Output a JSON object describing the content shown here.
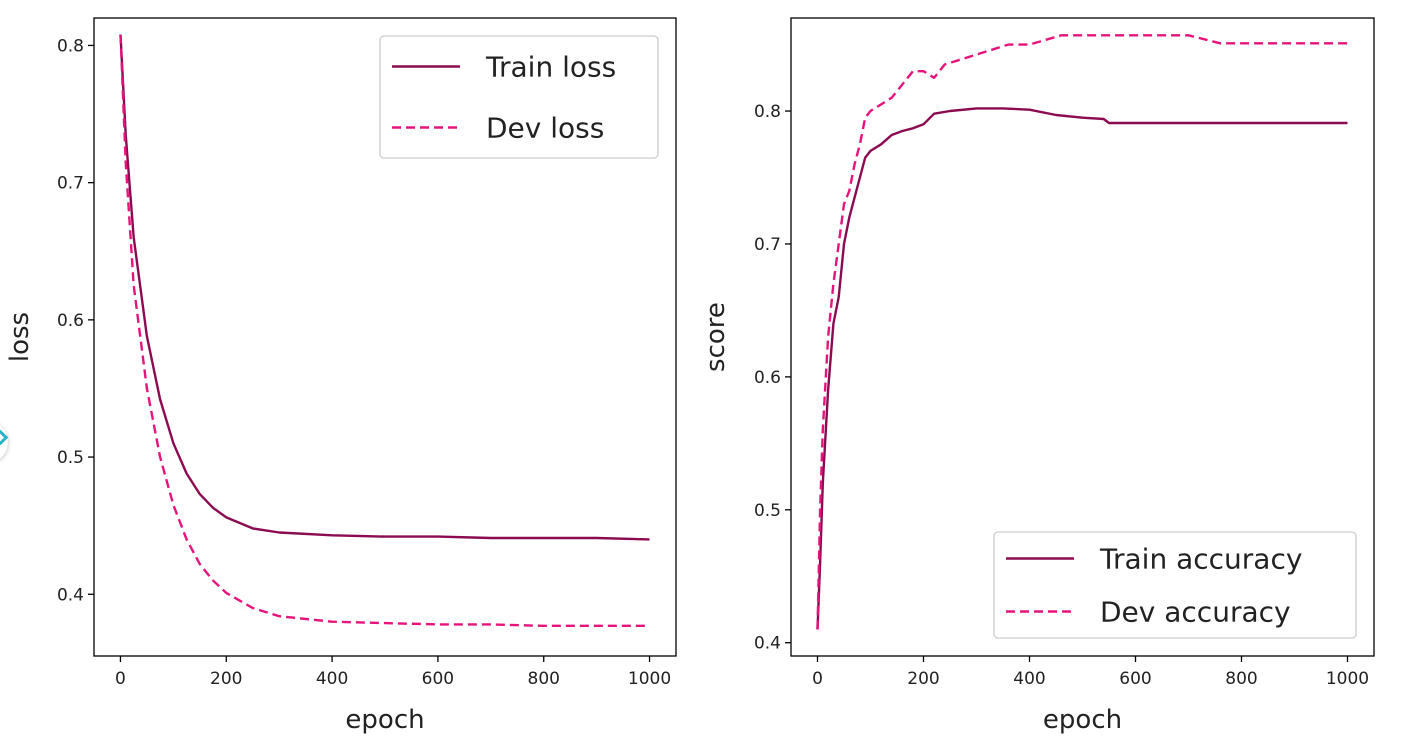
{
  "colors": {
    "train": "#8b0a50",
    "dev": "#e6147a"
  },
  "chart_data": [
    {
      "type": "line",
      "title": "",
      "xlabel": "epoch",
      "ylabel": "loss",
      "xlim": [
        -50,
        1050
      ],
      "ylim": [
        0.355,
        0.82
      ],
      "xticks": [
        0,
        200,
        400,
        600,
        800,
        1000
      ],
      "xtick_labels": [
        "0",
        "200",
        "400",
        "600",
        "800",
        "1000"
      ],
      "yticks": [
        0.4,
        0.5,
        0.6,
        0.7,
        0.8
      ],
      "ytick_labels": [
        "0.4",
        "0.5",
        "0.6",
        "0.7",
        "0.8"
      ],
      "legend_position": "top-right",
      "series": [
        {
          "name": "Train loss",
          "style": "solid",
          "color": "#8b0a50",
          "x": [
            0,
            10,
            25,
            50,
            75,
            100,
            125,
            150,
            175,
            200,
            250,
            300,
            400,
            500,
            600,
            700,
            800,
            900,
            1000
          ],
          "y": [
            0.808,
            0.735,
            0.66,
            0.588,
            0.542,
            0.51,
            0.488,
            0.473,
            0.463,
            0.456,
            0.448,
            0.445,
            0.443,
            0.442,
            0.442,
            0.441,
            0.441,
            0.441,
            0.44
          ]
        },
        {
          "name": "Dev loss",
          "style": "dashed",
          "color": "#e6147a",
          "x": [
            0,
            10,
            25,
            50,
            75,
            100,
            125,
            150,
            175,
            200,
            250,
            300,
            400,
            500,
            600,
            700,
            800,
            900,
            1000
          ],
          "y": [
            0.808,
            0.715,
            0.625,
            0.55,
            0.5,
            0.465,
            0.44,
            0.422,
            0.41,
            0.401,
            0.39,
            0.384,
            0.38,
            0.379,
            0.378,
            0.378,
            0.377,
            0.377,
            0.377
          ]
        }
      ]
    },
    {
      "type": "line",
      "title": "",
      "xlabel": "epoch",
      "ylabel": "score",
      "xlim": [
        -50,
        1050
      ],
      "ylim": [
        0.39,
        0.87
      ],
      "xticks": [
        0,
        200,
        400,
        600,
        800,
        1000
      ],
      "xtick_labels": [
        "0",
        "200",
        "400",
        "600",
        "800",
        "1000"
      ],
      "yticks": [
        0.4,
        0.5,
        0.6,
        0.7,
        0.8
      ],
      "ytick_labels": [
        "0.4",
        "0.5",
        "0.6",
        "0.7",
        "0.8"
      ],
      "legend_position": "bottom-right",
      "series": [
        {
          "name": "Train accuracy",
          "style": "solid",
          "color": "#8b0a50",
          "x": [
            0,
            5,
            10,
            20,
            30,
            40,
            50,
            60,
            70,
            80,
            90,
            100,
            120,
            140,
            160,
            180,
            200,
            220,
            250,
            300,
            350,
            400,
            450,
            500,
            540,
            550,
            600,
            700,
            800,
            900,
            1000
          ],
          "y": [
            0.41,
            0.46,
            0.52,
            0.59,
            0.64,
            0.66,
            0.7,
            0.72,
            0.735,
            0.75,
            0.765,
            0.77,
            0.775,
            0.782,
            0.785,
            0.787,
            0.79,
            0.798,
            0.8,
            0.802,
            0.802,
            0.801,
            0.797,
            0.795,
            0.794,
            0.791,
            0.791,
            0.791,
            0.791,
            0.791,
            0.791
          ]
        },
        {
          "name": "Dev accuracy",
          "style": "dashed",
          "color": "#e6147a",
          "x": [
            0,
            5,
            10,
            20,
            30,
            40,
            50,
            60,
            70,
            80,
            90,
            100,
            120,
            140,
            160,
            180,
            200,
            220,
            240,
            280,
            320,
            360,
            400,
            460,
            500,
            600,
            700,
            760,
            800,
            900,
            1000
          ],
          "y": [
            0.41,
            0.5,
            0.56,
            0.63,
            0.67,
            0.7,
            0.73,
            0.74,
            0.76,
            0.775,
            0.795,
            0.8,
            0.805,
            0.81,
            0.82,
            0.83,
            0.83,
            0.825,
            0.835,
            0.84,
            0.845,
            0.85,
            0.85,
            0.857,
            0.857,
            0.857,
            0.857,
            0.851,
            0.851,
            0.851,
            0.851
          ]
        }
      ]
    }
  ]
}
